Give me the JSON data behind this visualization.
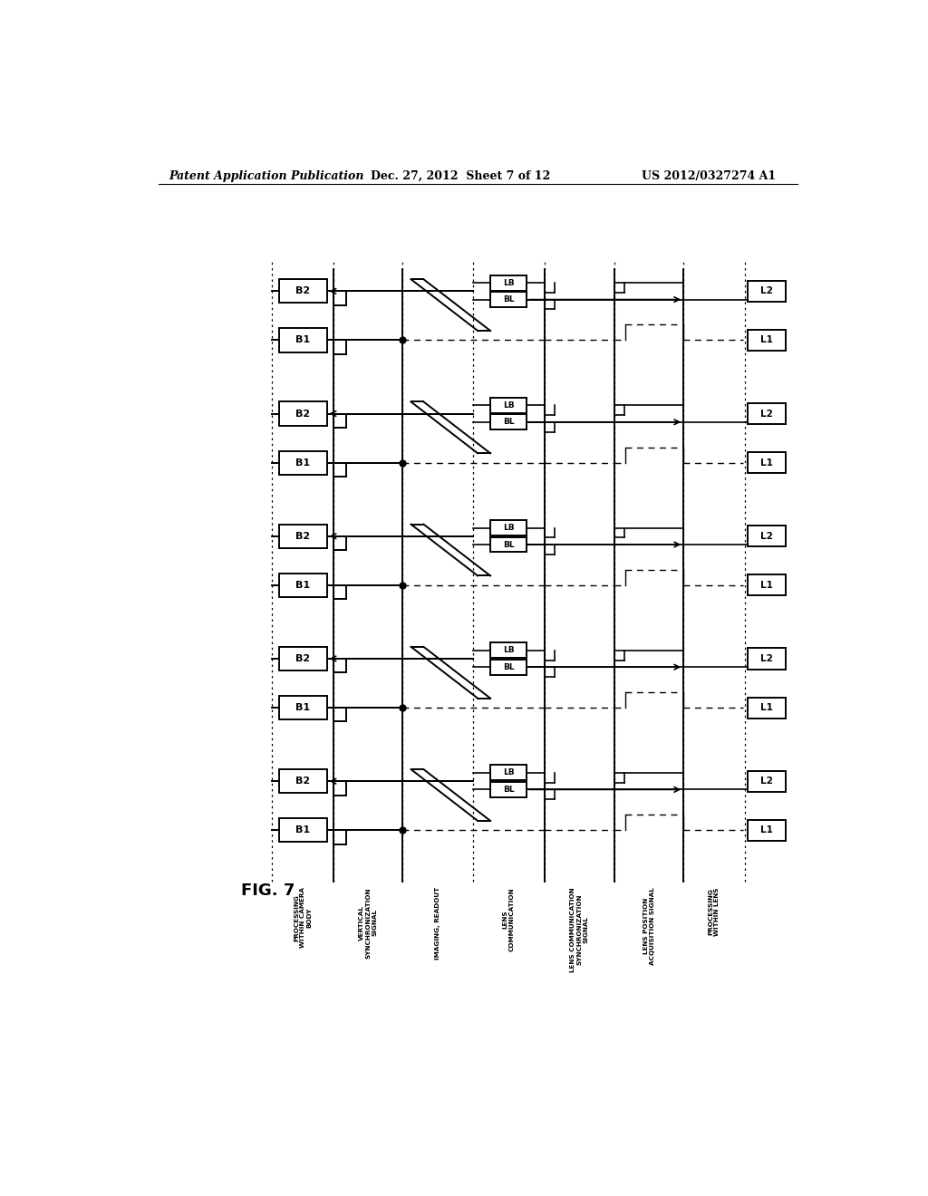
{
  "title_left": "Patent Application Publication",
  "title_mid": "Dec. 27, 2012  Sheet 7 of 12",
  "title_right": "US 2012/0327274 A1",
  "fig_label": "FIG. 7",
  "bg_color": "#ffffff",
  "num_cycles": 5,
  "col_labels": [
    "PROCESSING\nWITHIN CAMERA\nBODY",
    "VERTICAL\nSYNCHRONIZATION\nSIGNAL",
    "IMAGING, READOUT",
    "LENS\nCOMMUNICATION",
    "LENS COMMUNICATION\nSYNCHRONIZATION\nSIGNAL",
    "LENS POSITION\nACQUISITION SIGNAL",
    "PROCESSING\nWITHIN LENS"
  ]
}
